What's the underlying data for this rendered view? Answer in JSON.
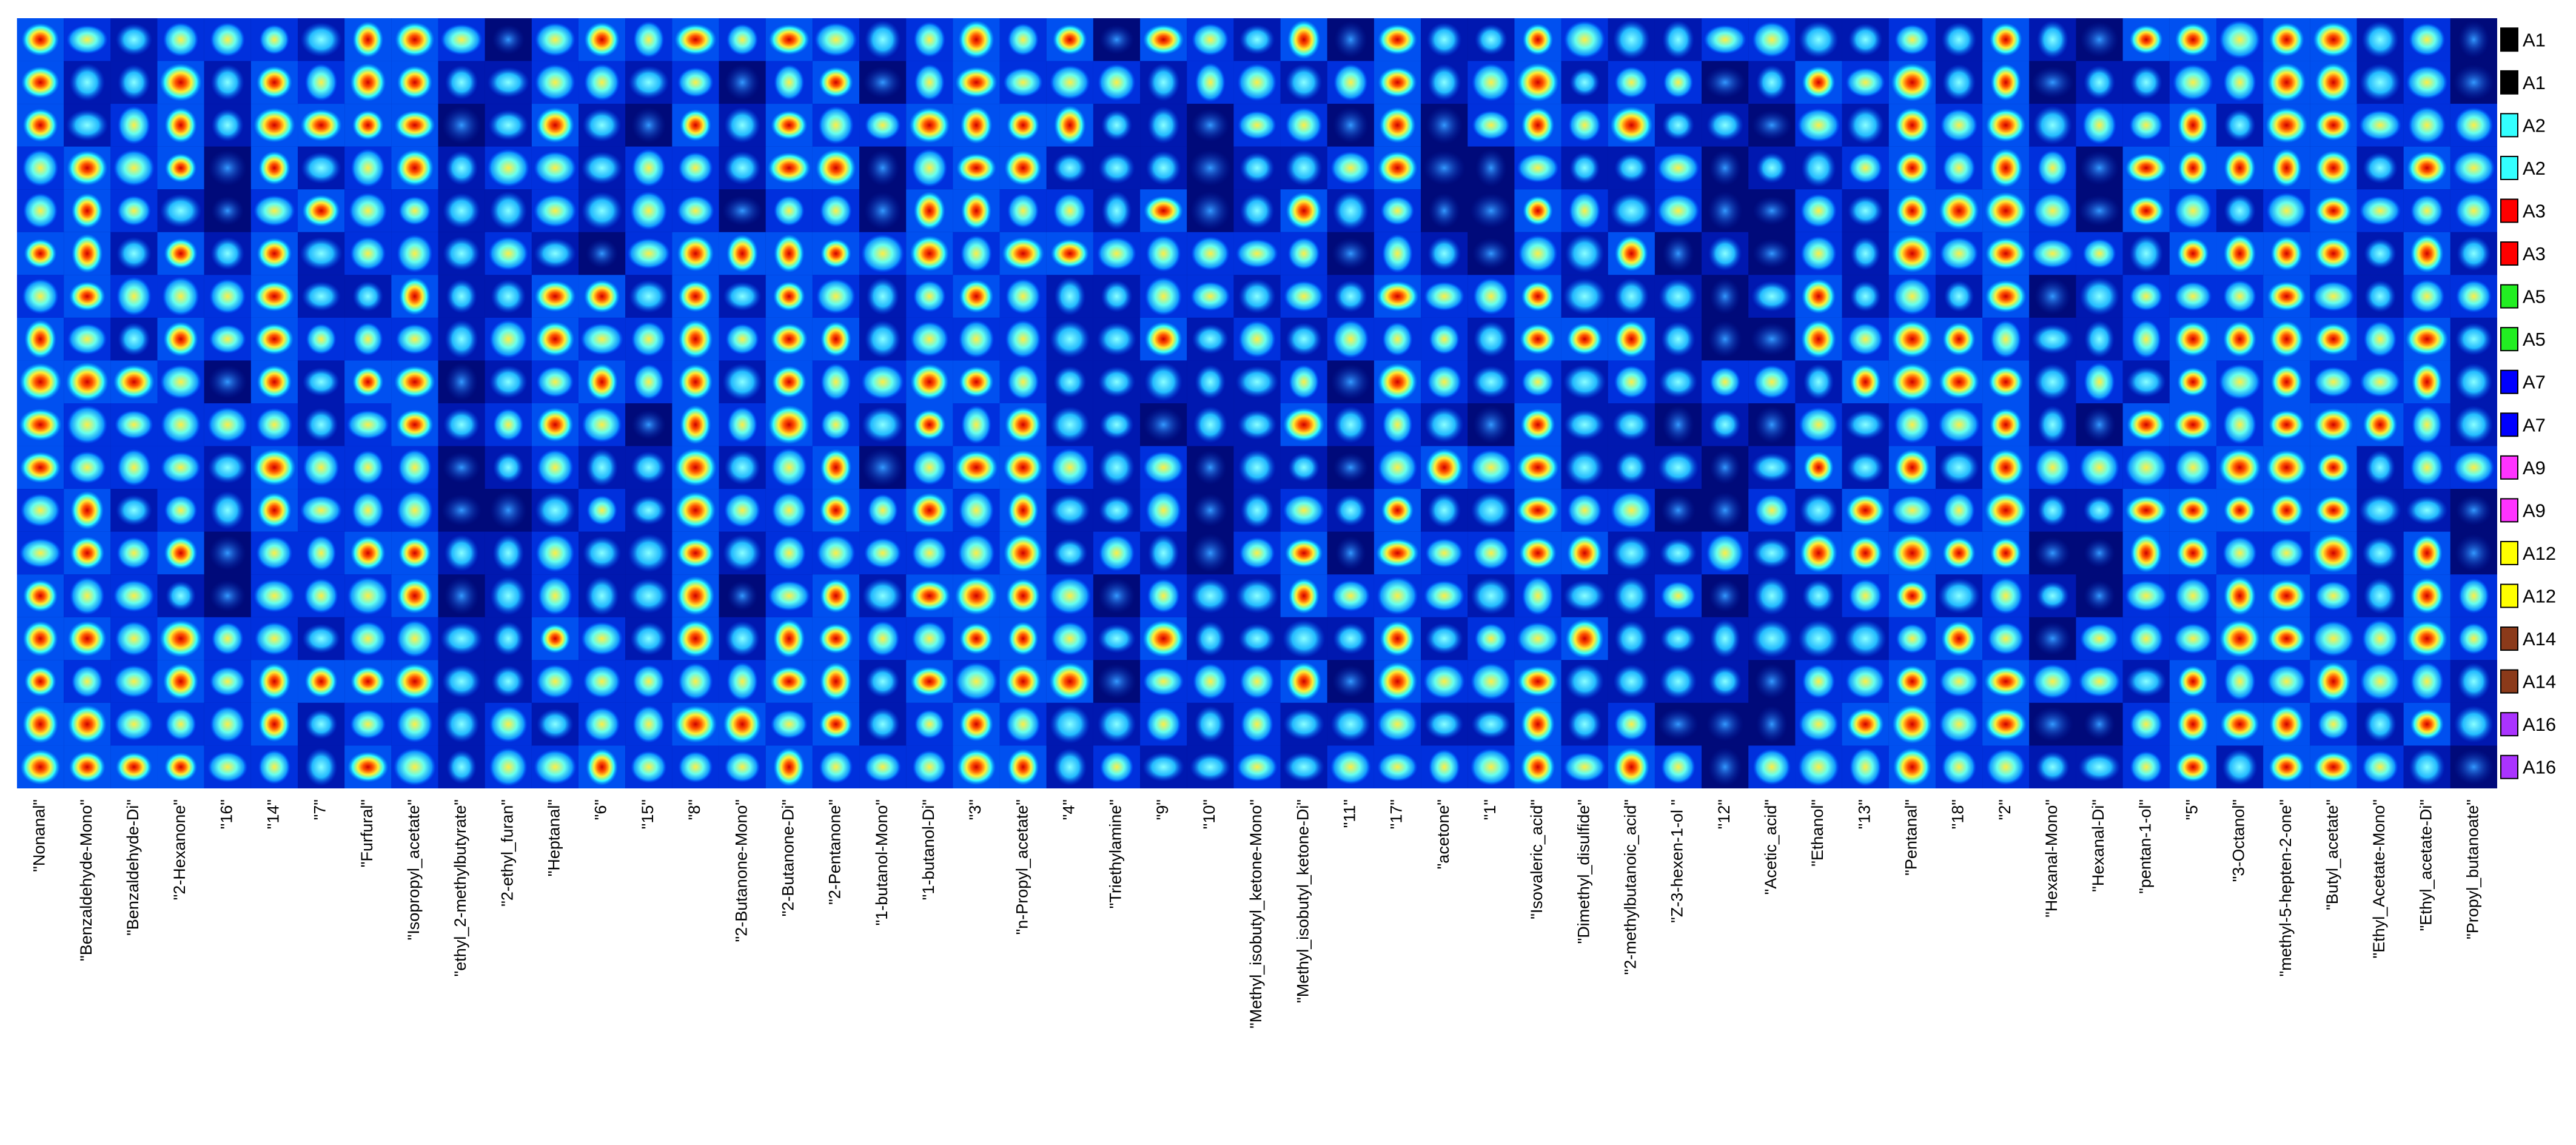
{
  "chart_data": {
    "type": "heatmap",
    "title": "",
    "xlabel": "",
    "ylabel": "",
    "columns": [
      "\"Nonanal\"",
      "\"Benzaldehyde-Mono\"",
      "\"Benzaldehyde-Di\"",
      "\"2-Hexanone\"",
      "\"16\"",
      "\"14\"",
      "\"7\"",
      "\"Furfural\"",
      "\"Isopropyl_acetate\"",
      "\"ethyl_2-methylbutyrate\"",
      "\"2-ethyl_furan\"",
      "\"Heptanal\"",
      "\"6\"",
      "\"15\"",
      "\"8\"",
      "\"2-Butanone-Mono\"",
      "\"2-Butanone-Di\"",
      "\"2-Pentanone\"",
      "\"1-butanol-Mono\"",
      "\"1-butanol-Di\"",
      "\"3\"",
      "\"n-Propyl_acetate\"",
      "\"4\"",
      "\"Triethylamine\"",
      "\"9\"",
      "\"10\"",
      "\"Methyl_isobutyl_ketone-Mono\"",
      "\"Methyl_isobutyl_ketone-Di\"",
      "\"11\"",
      "\"17\"",
      "\"acetone\"",
      "\"1\"",
      "\"Isovaleric_acid\"",
      "\"Dimethyl_disulfide\"",
      "\"2-methylbutanoic_acid\"",
      "\"Z-3-hexen-1-ol \"",
      "\"12\"",
      "\"Acetic_acid\"",
      "\"Ethanol\"",
      "\"13\"",
      "\"Pentanal\"",
      "\"18\"",
      "\"2\"",
      "\"Hexanal-Mono\"",
      "\"Hexanal-Di\"",
      "\"pentan-1-ol\"",
      "\"5\"",
      "\"3-Octanol\"",
      "\"methyl-5-hepten-2-one\"",
      "\"Butyl_acetate\"",
      "\"Ethyl_Acetate-Mono\"",
      "\"Ethyl_acetate-Di\"",
      "\"Propyl_butanoate\""
    ],
    "rows": [
      {
        "label": "A1",
        "color": "#000000"
      },
      {
        "label": "A1",
        "color": "#000000"
      },
      {
        "label": "A2",
        "color": "#33ffff"
      },
      {
        "label": "A2",
        "color": "#33ffff"
      },
      {
        "label": "A3",
        "color": "#ff0000"
      },
      {
        "label": "A3",
        "color": "#ff0000"
      },
      {
        "label": "A5",
        "color": "#22ee22"
      },
      {
        "label": "A5",
        "color": "#22ee22"
      },
      {
        "label": "A7",
        "color": "#0000ff"
      },
      {
        "label": "A7",
        "color": "#0000ff"
      },
      {
        "label": "A9",
        "color": "#ff33ff"
      },
      {
        "label": "A9",
        "color": "#ff33ff"
      },
      {
        "label": "A12",
        "color": "#ffff00"
      },
      {
        "label": "A12",
        "color": "#ffff00"
      },
      {
        "label": "A14",
        "color": "#8b3a1a"
      },
      {
        "label": "A14",
        "color": "#8b3a1a"
      },
      {
        "label": "A16",
        "color": "#aa33ff"
      },
      {
        "label": "A16",
        "color": "#aa33ff"
      }
    ],
    "colormap": [
      "#000066",
      "#0000cc",
      "#0044ff",
      "#00aaff",
      "#33ffff",
      "#ffff44",
      "#ffaa00",
      "#ff3300",
      "#aa0000"
    ],
    "grid": false,
    "legend_position": "right"
  }
}
